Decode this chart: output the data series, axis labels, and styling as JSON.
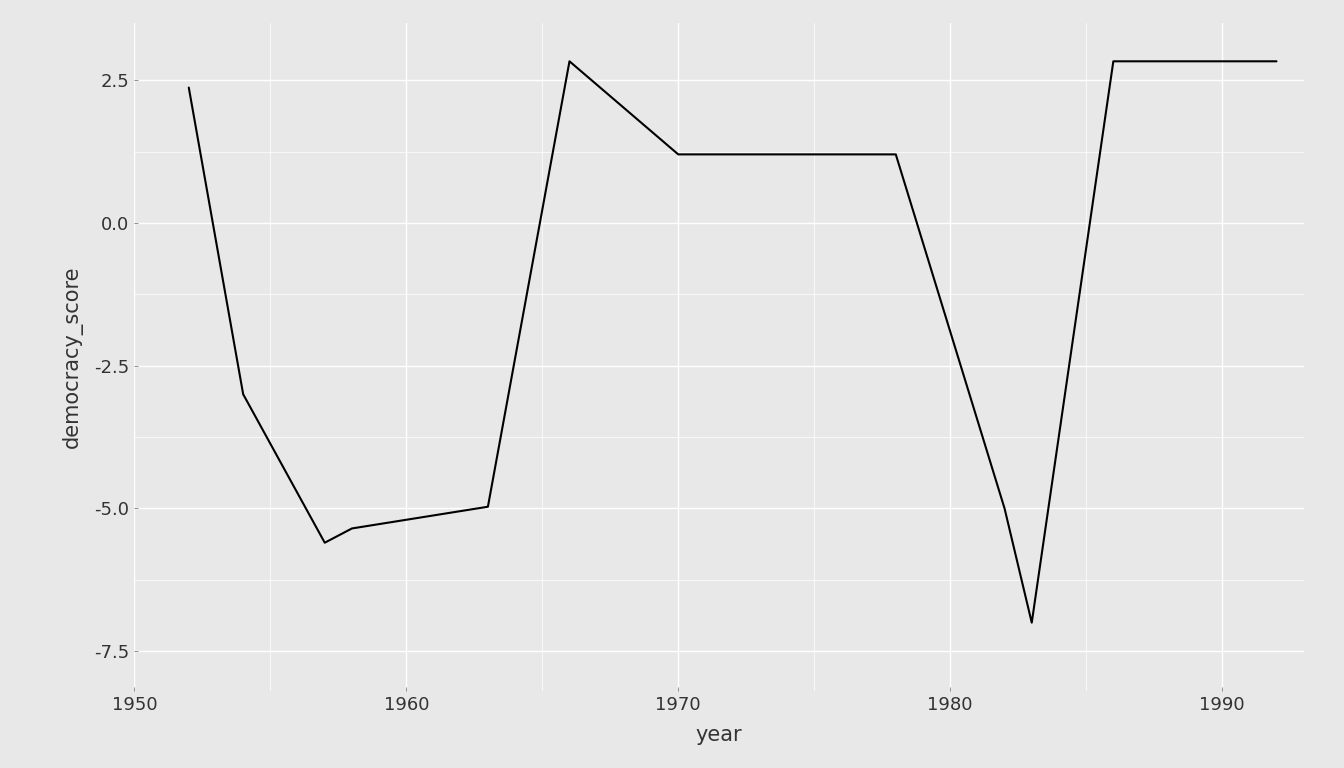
{
  "years": [
    1952,
    1954,
    1957,
    1958,
    1963,
    1966,
    1970,
    1978,
    1982,
    1983,
    1986,
    1990,
    1992
  ],
  "scores": [
    2.37,
    -3.0,
    -5.6,
    -5.35,
    -4.97,
    2.83,
    1.2,
    1.2,
    -5.0,
    -7.0,
    2.83,
    2.83,
    2.83
  ],
  "xlim": [
    1950,
    1993
  ],
  "ylim": [
    -8.2,
    3.5
  ],
  "xticks": [
    1950,
    1960,
    1970,
    1980,
    1990
  ],
  "yticks": [
    -7.5,
    -5.0,
    -2.5,
    0.0,
    2.5
  ],
  "xlabel": "year",
  "ylabel": "democracy_score",
  "line_color": "#000000",
  "line_width": 1.5,
  "background_color": "#E8E8E8",
  "panel_background": "#E8E8E8",
  "grid_color": "#FFFFFF",
  "grid_linewidth": 1.0,
  "fig_width": 13.44,
  "fig_height": 7.68,
  "dpi": 100
}
